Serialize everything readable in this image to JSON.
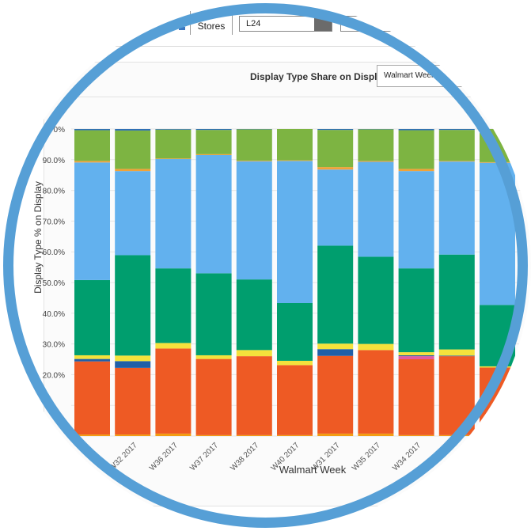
{
  "toolbar": {
    "stores_label": "Stores",
    "period_value": "L24"
  },
  "controls": {
    "share_label": "Display Type Share on Display",
    "week_select_value": "Walmart Week"
  },
  "colors": {
    "ring": "#569fd6",
    "seg_bottom_orange": "#f39c12",
    "seg_red_orange": "#ee5a24",
    "seg_pink": "#e05ca2",
    "seg_navy": "#1f5fa8",
    "seg_yellow": "#f4e23c",
    "seg_green": "#009e6e",
    "seg_light_blue": "#62b1ee",
    "seg_orange_thin": "#f0a33a",
    "seg_lime": "#7db442",
    "seg_top_blue": "#2e6fb5"
  },
  "chart_data": {
    "type": "bar",
    "stacked": true,
    "ylabel": "Display Type % on Display",
    "xlabel": "Walmart Week",
    "ylim": [
      0,
      100
    ],
    "yticks": [
      "",
      "",
      "20.0%",
      "30.0%",
      "40.0%",
      "50.0%",
      "60.0%",
      "70.0%",
      "80.0%",
      "90.0%",
      "0%"
    ],
    "categories": [
      "",
      "W32 2017",
      "W36 2017",
      "W37 2017",
      "W38 2017",
      "W40 2017",
      "W31 2017",
      "W35 2017",
      "W34 2017",
      "",
      ""
    ],
    "series": [
      {
        "color": "#f39c12",
        "values": [
          0.5,
          0.5,
          0.8,
          0.3,
          0.3,
          0.3,
          0.8,
          0.8,
          0.3,
          0.3,
          0.3
        ]
      },
      {
        "color": "#ee5a24",
        "values": [
          23.8,
          21.7,
          27.7,
          24.8,
          25.7,
          22.8,
          25.3,
          27.2,
          24.7,
          25.7,
          22.0
        ]
      },
      {
        "color": "#e05ca2",
        "values": [
          0,
          0,
          0,
          0,
          0,
          0,
          0,
          0,
          1.0,
          0,
          0
        ]
      },
      {
        "color": "#1f5fa8",
        "values": [
          0.8,
          2.2,
          0,
          0,
          0,
          0,
          2.2,
          0,
          0.3,
          0.2,
          0
        ]
      },
      {
        "color": "#f4e23c",
        "values": [
          1.2,
          1.8,
          1.8,
          1.2,
          2.0,
          1.4,
          1.8,
          2.0,
          1.0,
          2.0,
          0.4
        ]
      },
      {
        "color": "#009e6e",
        "values": [
          24.5,
          32.7,
          24.3,
          26.7,
          23.0,
          18.8,
          31.9,
          28.4,
          27.3,
          30.9,
          20.0
        ]
      },
      {
        "color": "#62b1ee",
        "values": [
          38.3,
          27.4,
          35.6,
          38.5,
          38.5,
          46.3,
          24.8,
          30.9,
          31.7,
          30.3,
          46.3
        ]
      },
      {
        "color": "#f0a33a",
        "values": [
          0.5,
          0.7,
          0.2,
          0.3,
          0.2,
          0.2,
          0.8,
          0.3,
          0.7,
          0.2,
          0.2
        ]
      },
      {
        "color": "#7db442",
        "values": [
          10.0,
          12.5,
          9.4,
          7.9,
          10.2,
          10.2,
          12.1,
          10.3,
          12.6,
          10.1,
          10.8
        ]
      },
      {
        "color": "#2e6fb5",
        "values": [
          0.4,
          0.5,
          0.2,
          0.3,
          0.1,
          0,
          0.3,
          0.1,
          0.4,
          0.3,
          0
        ]
      }
    ]
  }
}
